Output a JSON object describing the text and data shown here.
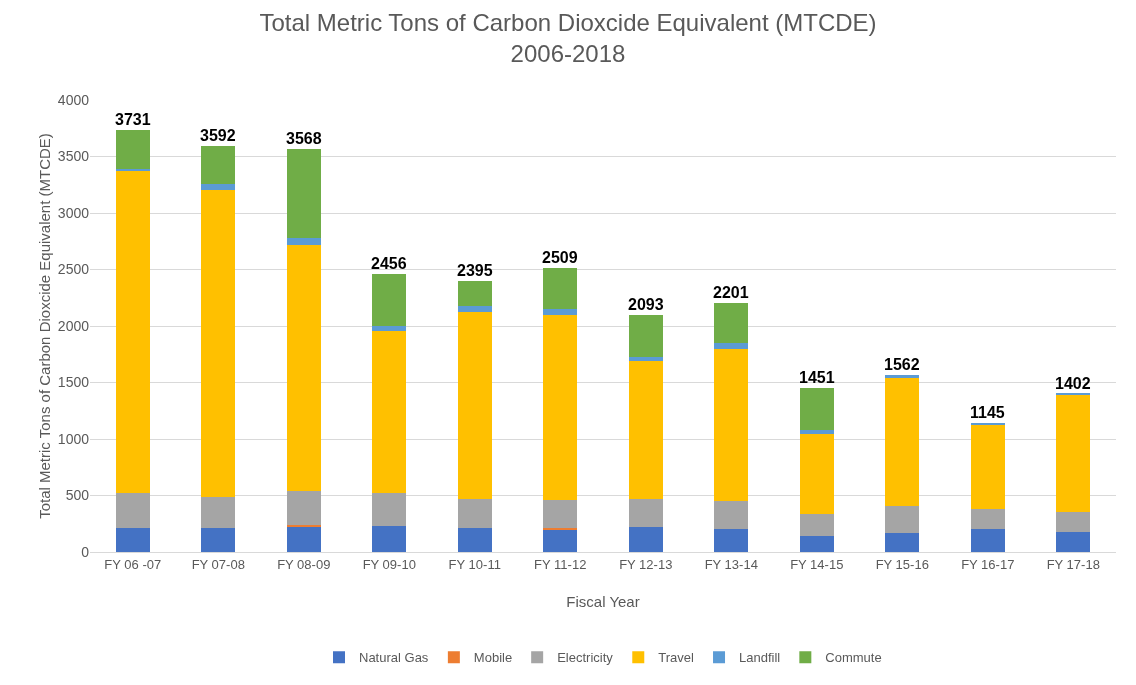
{
  "chart_data": {
    "type": "bar",
    "stacked": true,
    "title": "Total Metric Tons of Carbon Dioxcide Equivalent (MTCDE)\n2006-2018",
    "xlabel": "Fiscal Year",
    "ylabel": "Total Metric Tons of Carbon Dioxcide Equivalent (MTCDE)",
    "categories": [
      "FY 06 -07",
      "FY 07-08",
      "FY 08-09",
      "FY 09-10",
      "FY 10-11",
      "FY 11-12",
      "FY 12-13",
      "FY 13-14",
      "FY 14-15",
      "FY 15-16",
      "FY 16-17",
      "FY 17-18"
    ],
    "series": [
      {
        "name": "Natural Gas",
        "color": "#4472c4",
        "values": [
          210,
          210,
          230,
          230,
          210,
          200,
          220,
          200,
          140,
          170,
          200,
          180
        ]
      },
      {
        "name": "Mobile",
        "color": "#ed7d31",
        "values": [
          0,
          0,
          10,
          0,
          0,
          10,
          0,
          0,
          0,
          0,
          0,
          0
        ]
      },
      {
        "name": "Electricity",
        "color": "#a5a5a5",
        "values": [
          310,
          280,
          300,
          290,
          260,
          250,
          250,
          250,
          200,
          240,
          180,
          170
        ]
      },
      {
        "name": "Travel",
        "color": "#ffc000",
        "values": [
          2860,
          2710,
          2180,
          1440,
          1650,
          1640,
          1220,
          1350,
          700,
          1130,
          740,
          1040
        ]
      },
      {
        "name": "Landfill",
        "color": "#5b9bd5",
        "values": [
          10,
          60,
          60,
          40,
          60,
          50,
          40,
          50,
          40,
          22,
          25,
          12
        ]
      },
      {
        "name": "Commute",
        "color": "#70ad47",
        "values": [
          341,
          332,
          788,
          456,
          215,
          359,
          363,
          351,
          371,
          0,
          0,
          0
        ]
      }
    ],
    "totals": [
      "3731",
      "3592",
      "3568",
      "2456",
      "2395",
      "2509",
      "2093",
      "2201",
      "1451",
      "1562",
      "1145",
      "1402"
    ],
    "ylim": [
      0,
      4000
    ],
    "yticks": [
      0,
      500,
      1000,
      1500,
      2000,
      2500,
      3000,
      3500,
      4000
    ],
    "grid": "y",
    "legend": "bottom"
  }
}
